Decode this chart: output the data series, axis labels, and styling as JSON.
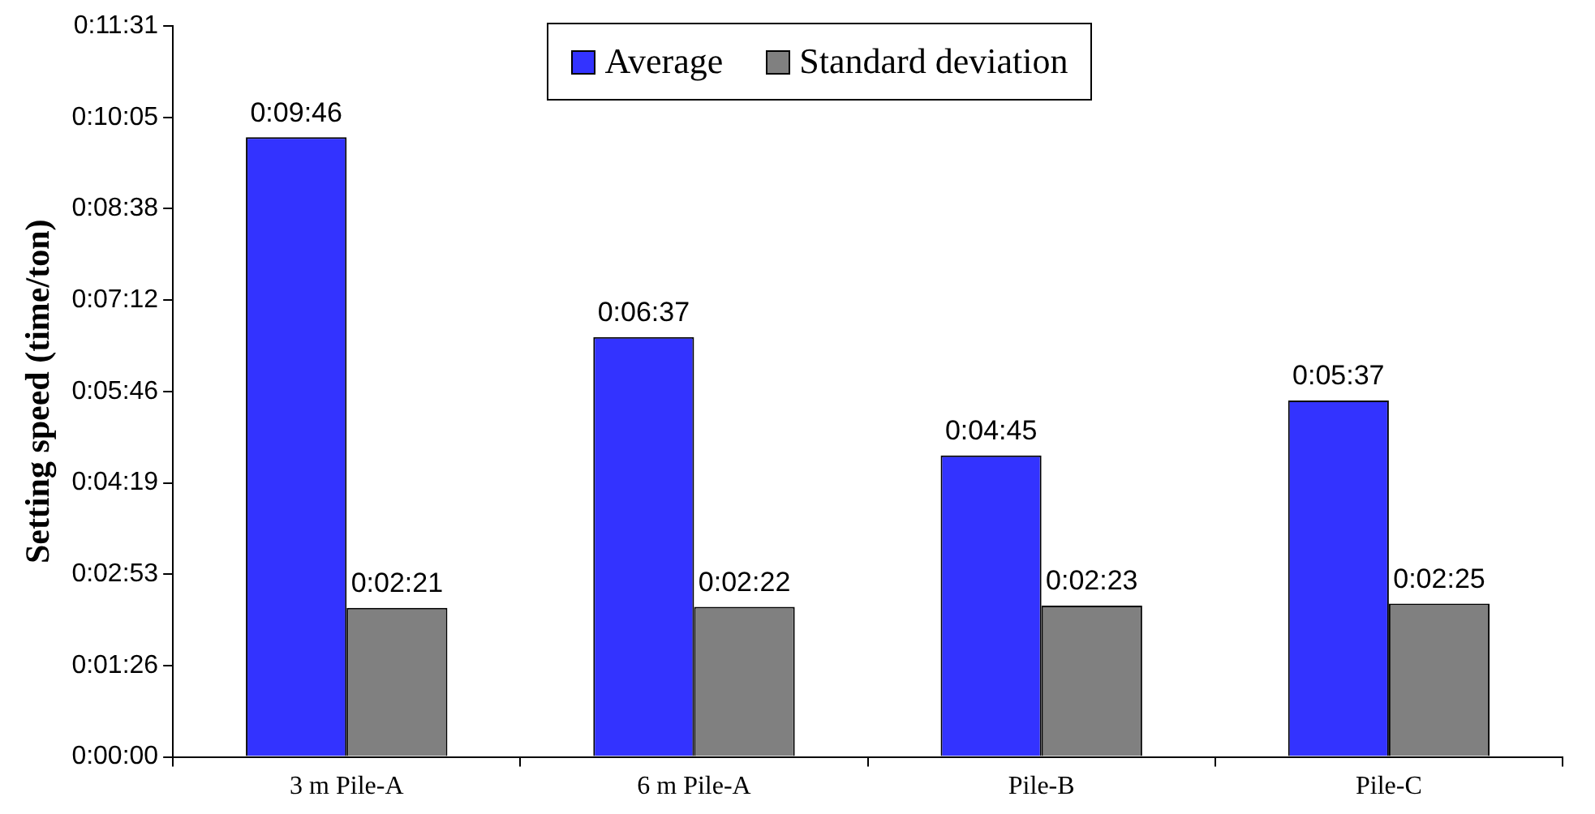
{
  "chart_data": {
    "type": "bar",
    "ylabel": "Setting speed (time/ton)",
    "categories": [
      "3 m Pile-A",
      "6 m Pile-A",
      "Pile-B",
      "Pile-C"
    ],
    "series": [
      {
        "name": "Average",
        "color": "#3333ff",
        "values": [
          586,
          397,
          285,
          337
        ],
        "value_labels": [
          "0:09:46",
          "0:06:37",
          "0:04:45",
          "0:05:37"
        ]
      },
      {
        "name": "Standard deviation",
        "color": "#808080",
        "values": [
          141,
          142,
          143,
          145
        ],
        "value_labels": [
          "0:02:21",
          "0:02:22",
          "0:02:23",
          "0:02:25"
        ]
      }
    ],
    "ylim": [
      0,
      691.2
    ],
    "yticks": [
      {
        "value": 0,
        "label": "0:00:00"
      },
      {
        "value": 86.4,
        "label": "0:01:26"
      },
      {
        "value": 172.8,
        "label": "0:02:53"
      },
      {
        "value": 259.2,
        "label": "0:04:19"
      },
      {
        "value": 345.6,
        "label": "0:05:46"
      },
      {
        "value": 432,
        "label": "0:07:12"
      },
      {
        "value": 518.4,
        "label": "0:08:38"
      },
      {
        "value": 604.8,
        "label": "0:10:05"
      },
      {
        "value": 691.2,
        "label": "0:11:31"
      }
    ],
    "grid": false,
    "legend": "top"
  }
}
